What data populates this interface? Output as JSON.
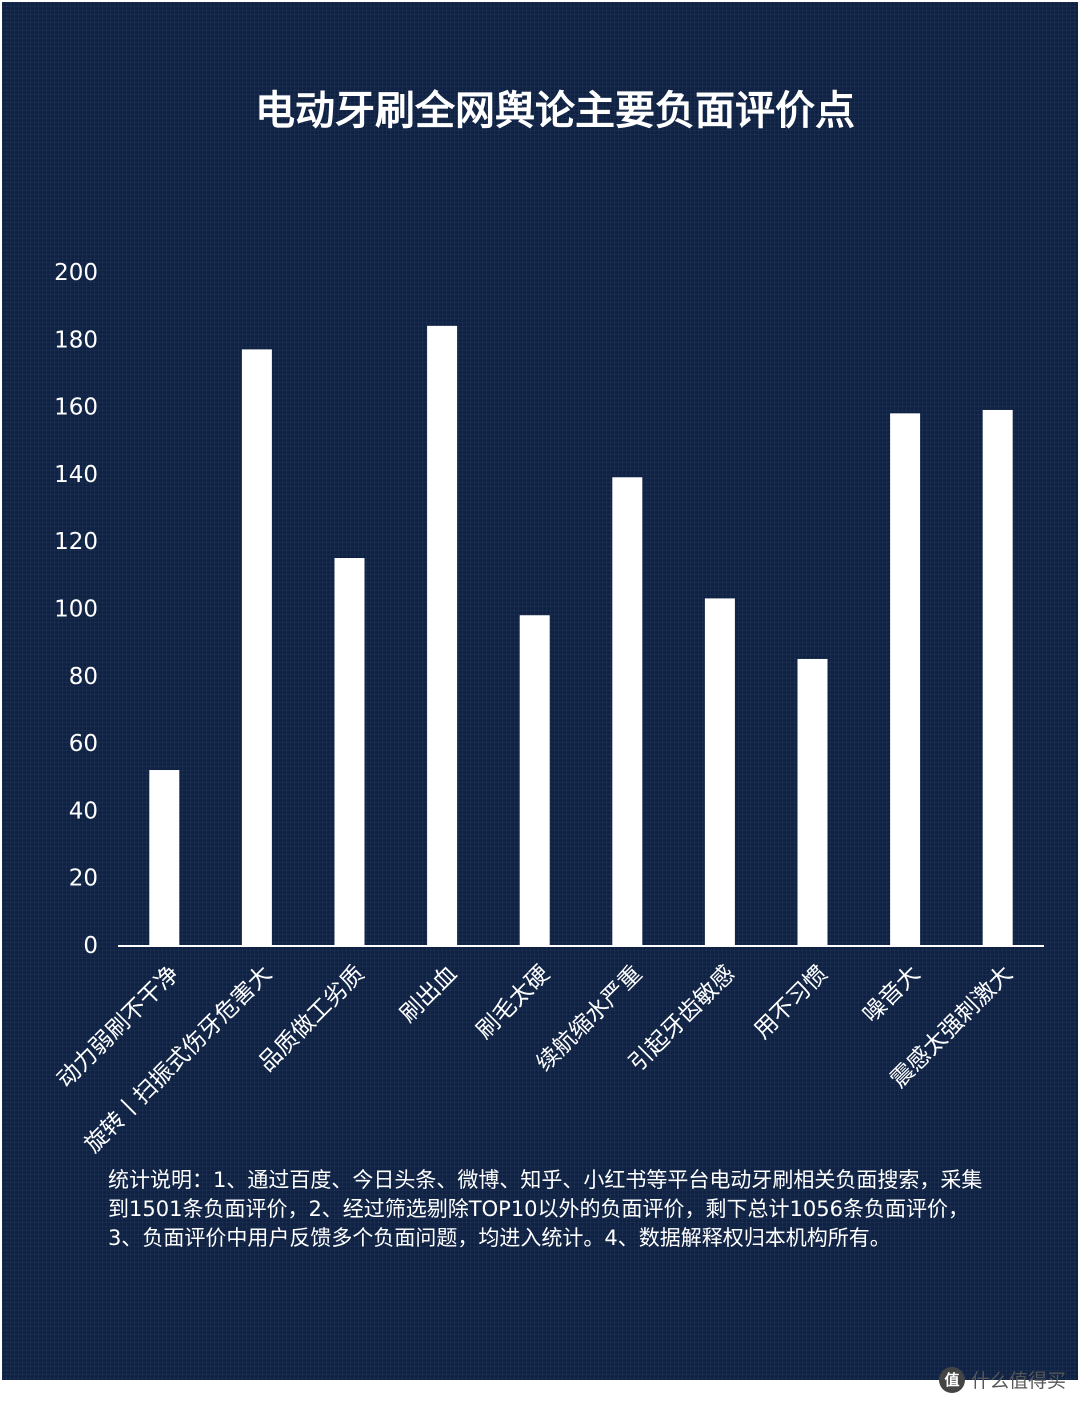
{
  "chart_data": {
    "type": "bar",
    "title": "电动牙刷全网舆论主要负面评价点",
    "categories": [
      "动力弱刷不干净",
      "旋转丨扫振式伤牙危害大",
      "品质做工劣质",
      "刷出血",
      "刷毛太硬",
      "续航缩水严重",
      "引起牙齿敏感",
      "用不习惯",
      "噪音大",
      "震感太强刺激大"
    ],
    "values": [
      52,
      177,
      115,
      184,
      98,
      139,
      103,
      85,
      158,
      159
    ],
    "yticks": [
      0,
      20,
      40,
      60,
      80,
      100,
      120,
      140,
      160,
      180,
      200
    ],
    "ylim": [
      0,
      200
    ],
    "xlabel": "",
    "ylabel": "",
    "grid": false,
    "legend": "none",
    "bar_color": "#ffffff",
    "background_color": "#0f2244"
  },
  "note": "统计说明：1、通过百度、今日头条、微博、知乎、小红书等平台电动牙刷相关负面搜索，采集到1501条负面评价，2、经过筛选剔除TOP10以外的负面评价，剩下总计1056条负面评价，3、负面评价中用户反馈多个负面问题，均进入统计。4、数据解释权归本机构所有。",
  "watermark": {
    "logo_text": "值",
    "text": "什么值得买"
  }
}
